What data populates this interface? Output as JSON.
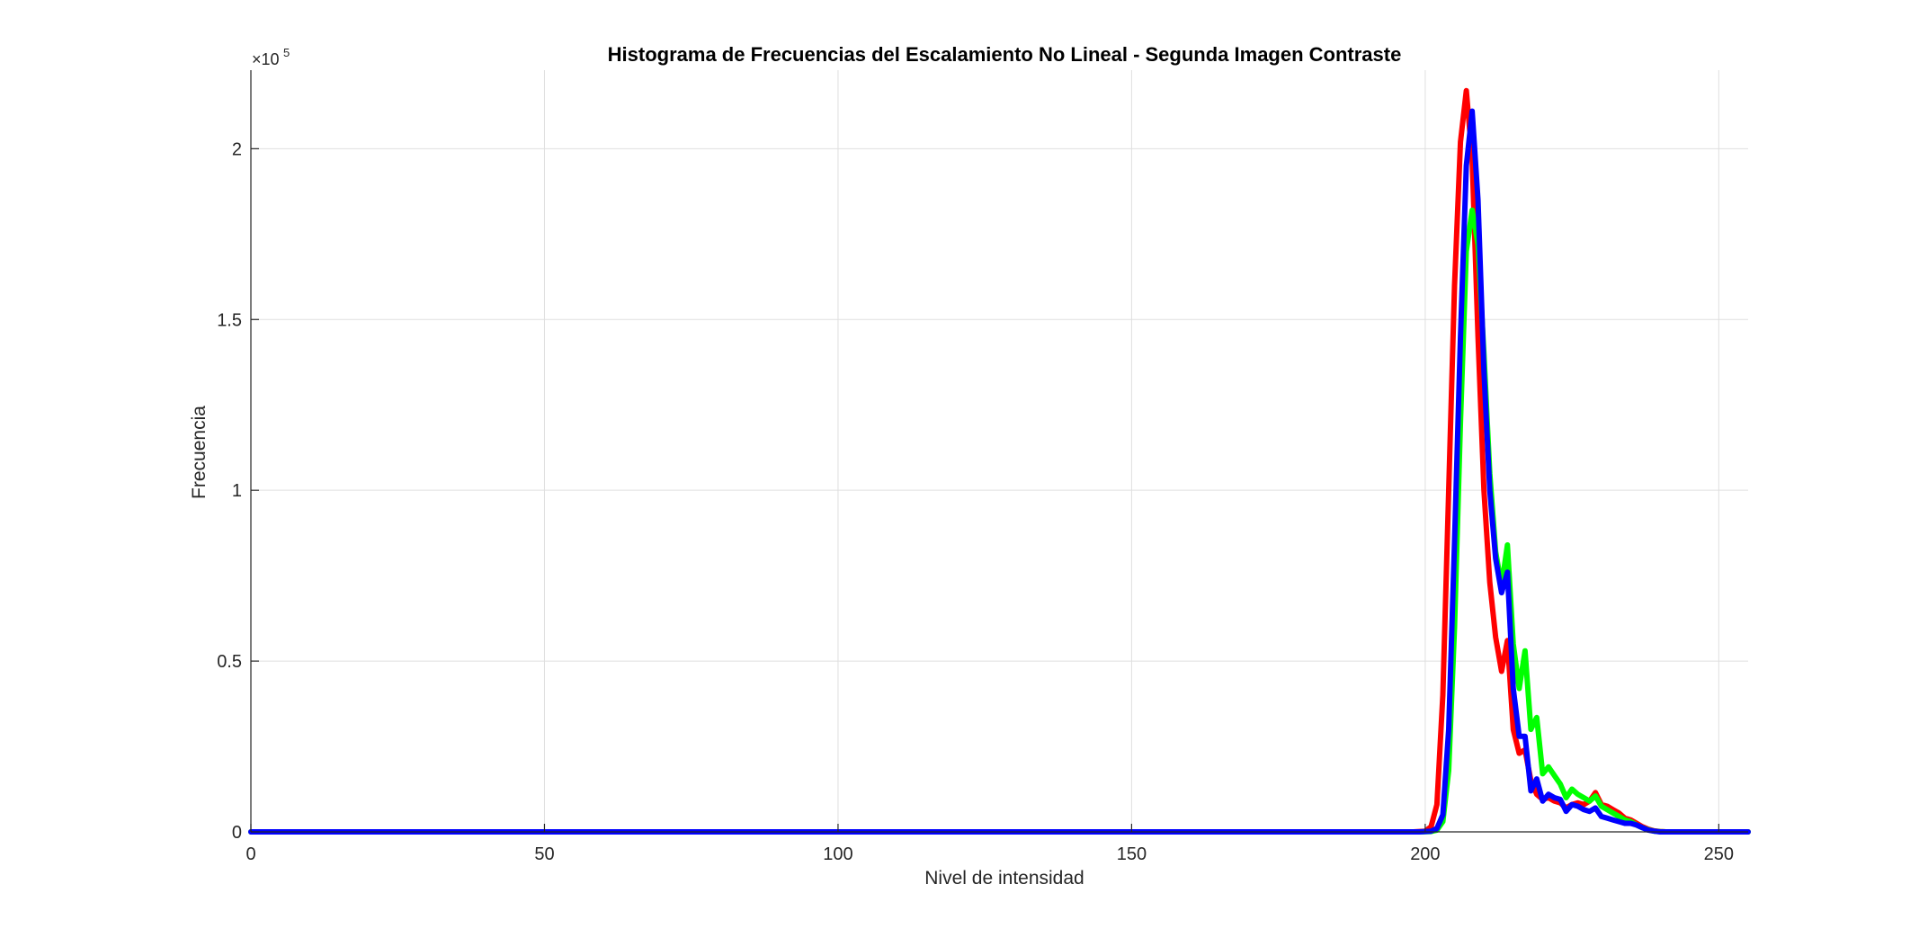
{
  "chart_data": {
    "type": "line",
    "title": "Histograma de Frecuencias del Escalamiento No Lineal - Segunda Imagen Contraste",
    "xlabel": "Nivel de intensidad",
    "ylabel": "Frecuencia",
    "xlim": [
      0,
      255
    ],
    "ylim": [
      0,
      223000
    ],
    "grid": true,
    "legend": "none",
    "x_ticks": [
      0,
      50,
      100,
      150,
      200,
      250
    ],
    "y_ticks": [
      0,
      50000,
      100000,
      150000,
      200000
    ],
    "y_tick_labels": [
      "0",
      "0.5",
      "1",
      "1.5",
      "2"
    ],
    "y_exponent_base": "×10",
    "y_exponent_power": "5",
    "series": [
      {
        "color": "#ff0000",
        "points": [
          [
            0,
            0
          ],
          [
            198,
            0
          ],
          [
            200,
            200
          ],
          [
            201,
            1500
          ],
          [
            202,
            8000
          ],
          [
            203,
            40000
          ],
          [
            204,
            100000
          ],
          [
            205,
            160000
          ],
          [
            206,
            202000
          ],
          [
            207,
            217000
          ],
          [
            208,
            197000
          ],
          [
            209,
            145000
          ],
          [
            210,
            100000
          ],
          [
            211,
            73000
          ],
          [
            212,
            57000
          ],
          [
            213,
            47000
          ],
          [
            214,
            56000
          ],
          [
            215,
            30000
          ],
          [
            216,
            23000
          ],
          [
            217,
            24000
          ],
          [
            218,
            15000
          ],
          [
            219,
            11000
          ],
          [
            220,
            9500
          ],
          [
            221,
            10000
          ],
          [
            222,
            9000
          ],
          [
            223,
            8500
          ],
          [
            224,
            7000
          ],
          [
            225,
            8000
          ],
          [
            226,
            8500
          ],
          [
            227,
            8000
          ],
          [
            228,
            9000
          ],
          [
            229,
            11500
          ],
          [
            230,
            8000
          ],
          [
            231,
            7500
          ],
          [
            232,
            6500
          ],
          [
            233,
            5500
          ],
          [
            234,
            4000
          ],
          [
            235,
            3500
          ],
          [
            236,
            2500
          ],
          [
            237,
            1500
          ],
          [
            238,
            800
          ],
          [
            239,
            300
          ],
          [
            240,
            100
          ],
          [
            241,
            0
          ],
          [
            255,
            0
          ]
        ]
      },
      {
        "color": "#00ff00",
        "points": [
          [
            0,
            0
          ],
          [
            199,
            0
          ],
          [
            201,
            100
          ],
          [
            202,
            500
          ],
          [
            203,
            3000
          ],
          [
            204,
            18000
          ],
          [
            205,
            60000
          ],
          [
            206,
            120000
          ],
          [
            207,
            170000
          ],
          [
            208,
            182000
          ],
          [
            209,
            172000
          ],
          [
            210,
            140000
          ],
          [
            211,
            105000
          ],
          [
            212,
            82000
          ],
          [
            213,
            72000
          ],
          [
            214,
            84000
          ],
          [
            215,
            55000
          ],
          [
            216,
            42000
          ],
          [
            217,
            53000
          ],
          [
            218,
            30000
          ],
          [
            219,
            33500
          ],
          [
            220,
            17000
          ],
          [
            221,
            19000
          ],
          [
            222,
            16500
          ],
          [
            223,
            14000
          ],
          [
            224,
            10000
          ],
          [
            225,
            12500
          ],
          [
            226,
            11000
          ],
          [
            227,
            10000
          ],
          [
            228,
            9000
          ],
          [
            229,
            10500
          ],
          [
            230,
            7500
          ],
          [
            231,
            6500
          ],
          [
            232,
            5500
          ],
          [
            233,
            4500
          ],
          [
            234,
            3500
          ],
          [
            235,
            3000
          ],
          [
            236,
            2000
          ],
          [
            237,
            1200
          ],
          [
            238,
            600
          ],
          [
            239,
            200
          ],
          [
            240,
            50
          ],
          [
            241,
            0
          ],
          [
            255,
            0
          ]
        ]
      },
      {
        "color": "#0000ff",
        "points": [
          [
            0,
            0
          ],
          [
            199,
            0
          ],
          [
            201,
            200
          ],
          [
            202,
            1000
          ],
          [
            203,
            5000
          ],
          [
            204,
            30000
          ],
          [
            205,
            85000
          ],
          [
            206,
            145000
          ],
          [
            207,
            195000
          ],
          [
            208,
            211000
          ],
          [
            209,
            185000
          ],
          [
            210,
            135000
          ],
          [
            211,
            100000
          ],
          [
            212,
            80000
          ],
          [
            213,
            70000
          ],
          [
            214,
            76000
          ],
          [
            215,
            42000
          ],
          [
            216,
            28000
          ],
          [
            217,
            28000
          ],
          [
            218,
            12000
          ],
          [
            219,
            15500
          ],
          [
            220,
            9000
          ],
          [
            221,
            11000
          ],
          [
            222,
            10000
          ],
          [
            223,
            9500
          ],
          [
            224,
            6000
          ],
          [
            225,
            8000
          ],
          [
            226,
            7500
          ],
          [
            227,
            6500
          ],
          [
            228,
            6000
          ],
          [
            229,
            7000
          ],
          [
            230,
            4500
          ],
          [
            231,
            4000
          ],
          [
            232,
            3500
          ],
          [
            233,
            3000
          ],
          [
            234,
            2500
          ],
          [
            235,
            2500
          ],
          [
            236,
            2000
          ],
          [
            237,
            1200
          ],
          [
            238,
            500
          ],
          [
            239,
            200
          ],
          [
            240,
            0
          ],
          [
            255,
            0
          ]
        ]
      }
    ]
  }
}
